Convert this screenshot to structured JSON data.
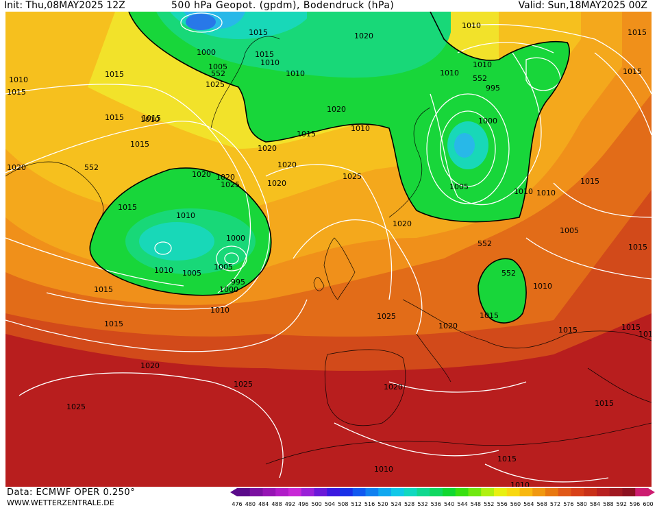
{
  "header": {
    "init": "Init: Thu,08MAY2025 12Z",
    "title": "500 hPa Geopot. (gpdm), Bodendruck (hPa)",
    "valid": "Valid: Sun,18MAY2025 00Z"
  },
  "footer": {
    "source": "Data: ECMWF OPER 0.250°",
    "site": "WWW.WETTERZENTRALE.DE"
  },
  "colorbar": {
    "labels": [
      "476",
      "480",
      "484",
      "488",
      "492",
      "496",
      "500",
      "504",
      "508",
      "512",
      "516",
      "520",
      "524",
      "528",
      "532",
      "536",
      "540",
      "544",
      "548",
      "552",
      "556",
      "560",
      "564",
      "568",
      "572",
      "576",
      "580",
      "584",
      "588",
      "592",
      "596",
      "600"
    ],
    "colors": [
      "#5a0a8a",
      "#7a10a0",
      "#9614b4",
      "#b01cc8",
      "#c828d6",
      "#9a20d8",
      "#6a18d8",
      "#3a18e0",
      "#1830e8",
      "#1058f0",
      "#1080f0",
      "#10a8f0",
      "#10c8e8",
      "#10d8c0",
      "#10d890",
      "#10d860",
      "#10d830",
      "#38e010",
      "#70e810",
      "#b0f010",
      "#e8f010",
      "#f8d810",
      "#f8b810",
      "#f09810",
      "#e87810",
      "#e05818",
      "#d84018",
      "#c83018",
      "#b82020",
      "#a01820",
      "#8c1020",
      "#cc1c70"
    ]
  },
  "map": {
    "colors": {
      "far_south": "#b81e1e",
      "south": "#d24a1a",
      "mid": "#e26c18",
      "orange": "#f0901a",
      "light_orange": "#f4a81c",
      "yellow_orange": "#f6c01e",
      "yellow": "#f2e22a",
      "green_yellow": "#b0ea22",
      "green": "#18d63a",
      "green_mid": "#18d878",
      "cyan": "#18d8b8",
      "light_blue": "#28b8e8",
      "blue": "#2878e8",
      "isobar": "#ffffff",
      "contour": "#000000"
    },
    "pressure_labels": [
      "1015",
      "1010",
      "1000",
      "1020",
      "1005",
      "552",
      "1025",
      "1010",
      "1015",
      "1010",
      "1020",
      "1015",
      "1020",
      "1020",
      "1025",
      "1020",
      "1015",
      "1015",
      "1015",
      "1010",
      "1015",
      "552",
      "1020",
      "1020",
      "1025",
      "1020",
      "1015",
      "1010",
      "1005",
      "1000",
      "1010",
      "1005",
      "1000",
      "995",
      "1015",
      "1015",
      "1010",
      "1025",
      "1020",
      "1015",
      "1000",
      "995",
      "1005",
      "1010",
      "1010",
      "1015",
      "552",
      "1005",
      "1020",
      "552",
      "1010",
      "1015",
      "1015",
      "1015",
      "1015",
      "1020",
      "1025",
      "1025",
      "1020",
      "1015",
      "1015",
      "1010",
      "1010",
      "1025",
      "1020",
      "1015",
      "1010",
      "1010",
      "1015",
      "1015",
      "1010",
      "552",
      "1010"
    ]
  }
}
